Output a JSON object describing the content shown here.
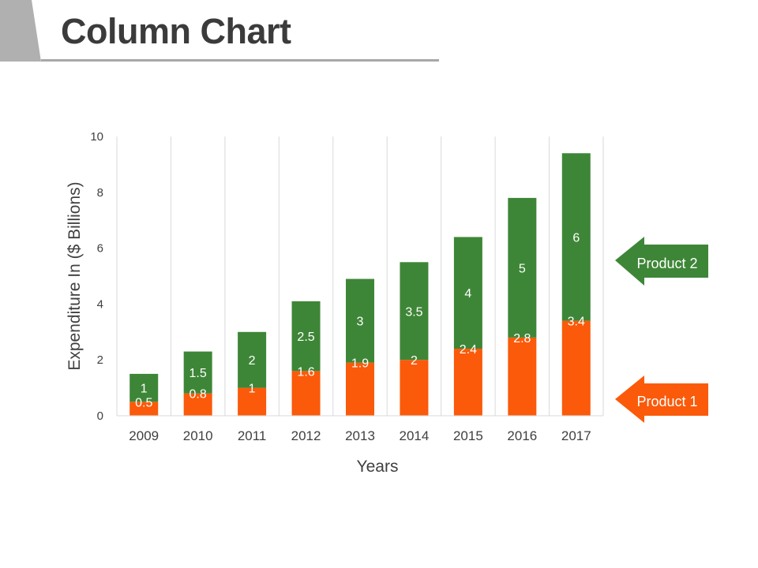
{
  "page": {
    "title": "Column Chart"
  },
  "colors": {
    "product1": "#fa5a0a",
    "product2": "#3e8637",
    "grid": "#d9d9d9",
    "title_tab": "#b0b0b0"
  },
  "chart_data": {
    "type": "bar",
    "stacked": true,
    "categories": [
      "2009",
      "2010",
      "2011",
      "2012",
      "2013",
      "2014",
      "2015",
      "2016",
      "2017"
    ],
    "series": [
      {
        "name": "Product 1",
        "values": [
          0.5,
          0.8,
          1,
          1.6,
          1.9,
          2,
          2.4,
          2.8,
          3.4
        ]
      },
      {
        "name": "Product 2",
        "values": [
          1,
          1.5,
          2,
          2.5,
          3,
          3.5,
          4,
          5,
          6
        ]
      }
    ],
    "xlabel": "Years",
    "ylabel": "Expenditure In ($ Billions)",
    "ylim": [
      0,
      10
    ],
    "yticks": [
      "0",
      "2",
      "4",
      "6",
      "8",
      "10"
    ],
    "grid": "vertical",
    "legend": "right (arrow callouts)"
  }
}
